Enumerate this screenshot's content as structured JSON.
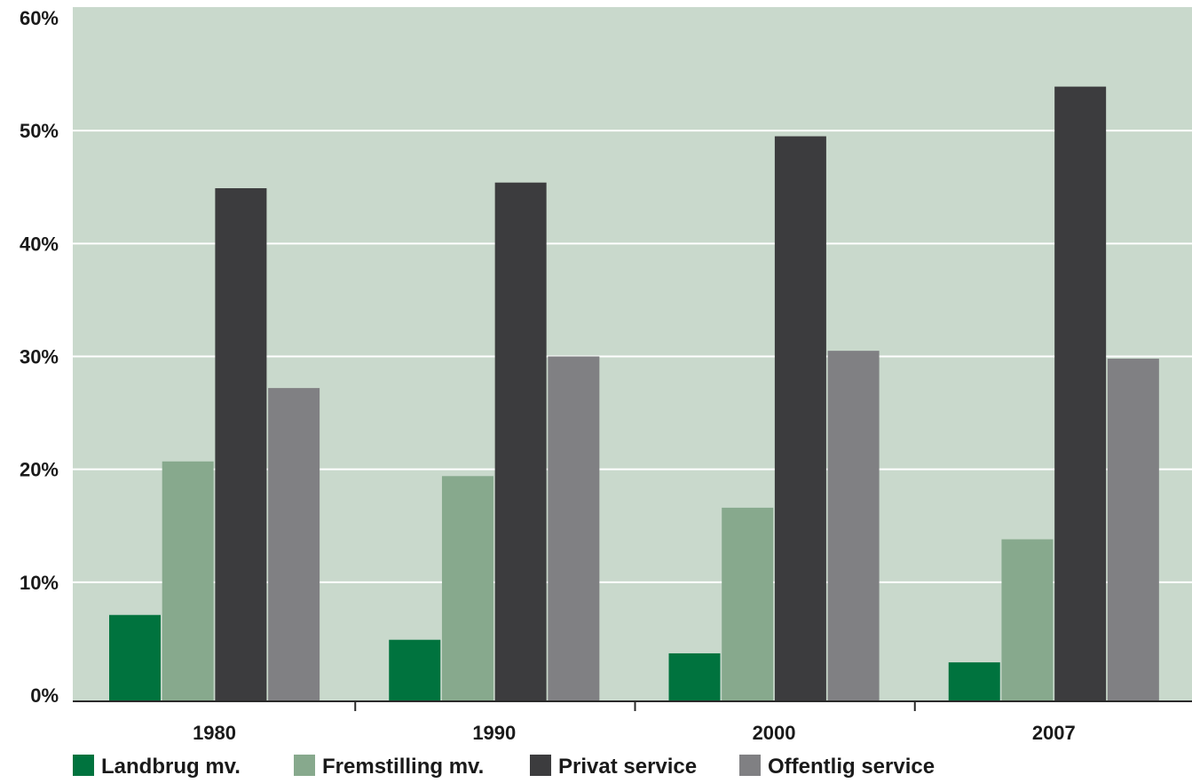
{
  "chart_data": {
    "type": "bar",
    "title": "",
    "xlabel": "",
    "ylabel": "",
    "categories": [
      "1980",
      "1990",
      "2000",
      "2007"
    ],
    "ylim": [
      0,
      60
    ],
    "yticks": [
      0,
      10,
      20,
      30,
      40,
      50,
      60
    ],
    "ytick_labels": [
      "0%",
      "10%",
      "20%",
      "30%",
      "40%",
      "50%",
      "60%"
    ],
    "grid": true,
    "legend_position": "bottom",
    "background_color": "#c9d9cc",
    "series": [
      {
        "name": "Landbrug mv.",
        "color": "#00733e",
        "values": [
          7.1,
          4.9,
          3.7,
          2.9
        ]
      },
      {
        "name": "Fremstilling mv.",
        "color": "#87a98d",
        "values": [
          20.7,
          19.4,
          16.6,
          13.8
        ]
      },
      {
        "name": "Privat service",
        "color": "#3c3c3e",
        "values": [
          44.9,
          45.4,
          49.5,
          53.9
        ]
      },
      {
        "name": "Offentlig service",
        "color": "#808083",
        "values": [
          27.2,
          30.0,
          30.5,
          29.8
        ]
      }
    ]
  }
}
